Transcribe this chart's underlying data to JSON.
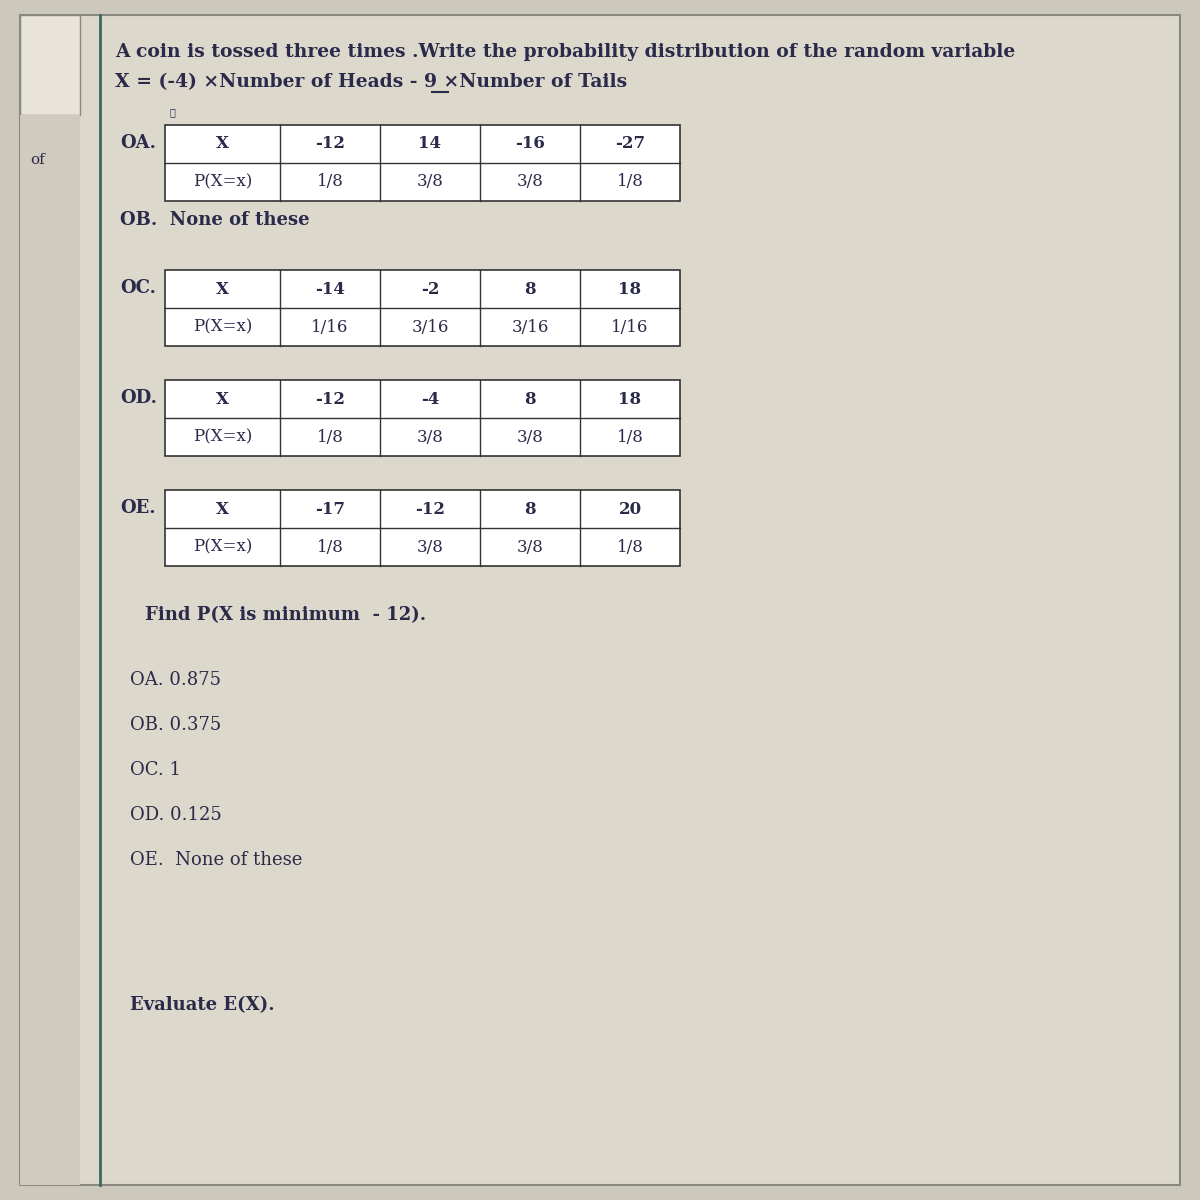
{
  "title_line1": "A coin is tossed three times .Write the probability distribution of the random variable",
  "title_line2": "X = (-4) ×Number of Heads - 9 ×Number of Tails",
  "bg_color": "#cdc8bc",
  "content_bg": "#d8d3c8",
  "left_panel_bg": "#cdc8bc",
  "border_color": "#5a7a6a",
  "text_color": "#2a2a4a",
  "option_A": {
    "label": "OA.",
    "headers": [
      "X",
      "-12",
      "14",
      "-16",
      "-27"
    ],
    "row2": [
      "P(X=x)",
      "1/8",
      "3/8",
      "3/8",
      "1/8"
    ]
  },
  "option_B_text": "OB.  None of these",
  "option_C": {
    "label": "OC.",
    "headers": [
      "X",
      "-14",
      "-2",
      "8",
      "18"
    ],
    "row2": [
      "P(X=x)",
      "1/16",
      "3/16",
      "3/16",
      "1/16"
    ]
  },
  "option_D": {
    "label": "OD.",
    "headers": [
      "X",
      "-12",
      "-4",
      "8",
      "18"
    ],
    "row2": [
      "P(X=x)",
      "1/8",
      "3/8",
      "3/8",
      "1/8"
    ]
  },
  "option_E": {
    "label": "OE.",
    "headers": [
      "X",
      "-17",
      "-12",
      "8",
      "20"
    ],
    "row2": [
      "P(X=x)",
      "1/8",
      "3/8",
      "3/8",
      "1/8"
    ]
  },
  "find_text": "Find P(X is minimum  - 12).",
  "find_options": [
    "OA. 0.875",
    "OB. 0.375",
    "OC. 1",
    "OD. 0.125",
    "OE.  None of these"
  ],
  "evaluate_text": "Evaluate E(X).",
  "left_margin_text": "of"
}
